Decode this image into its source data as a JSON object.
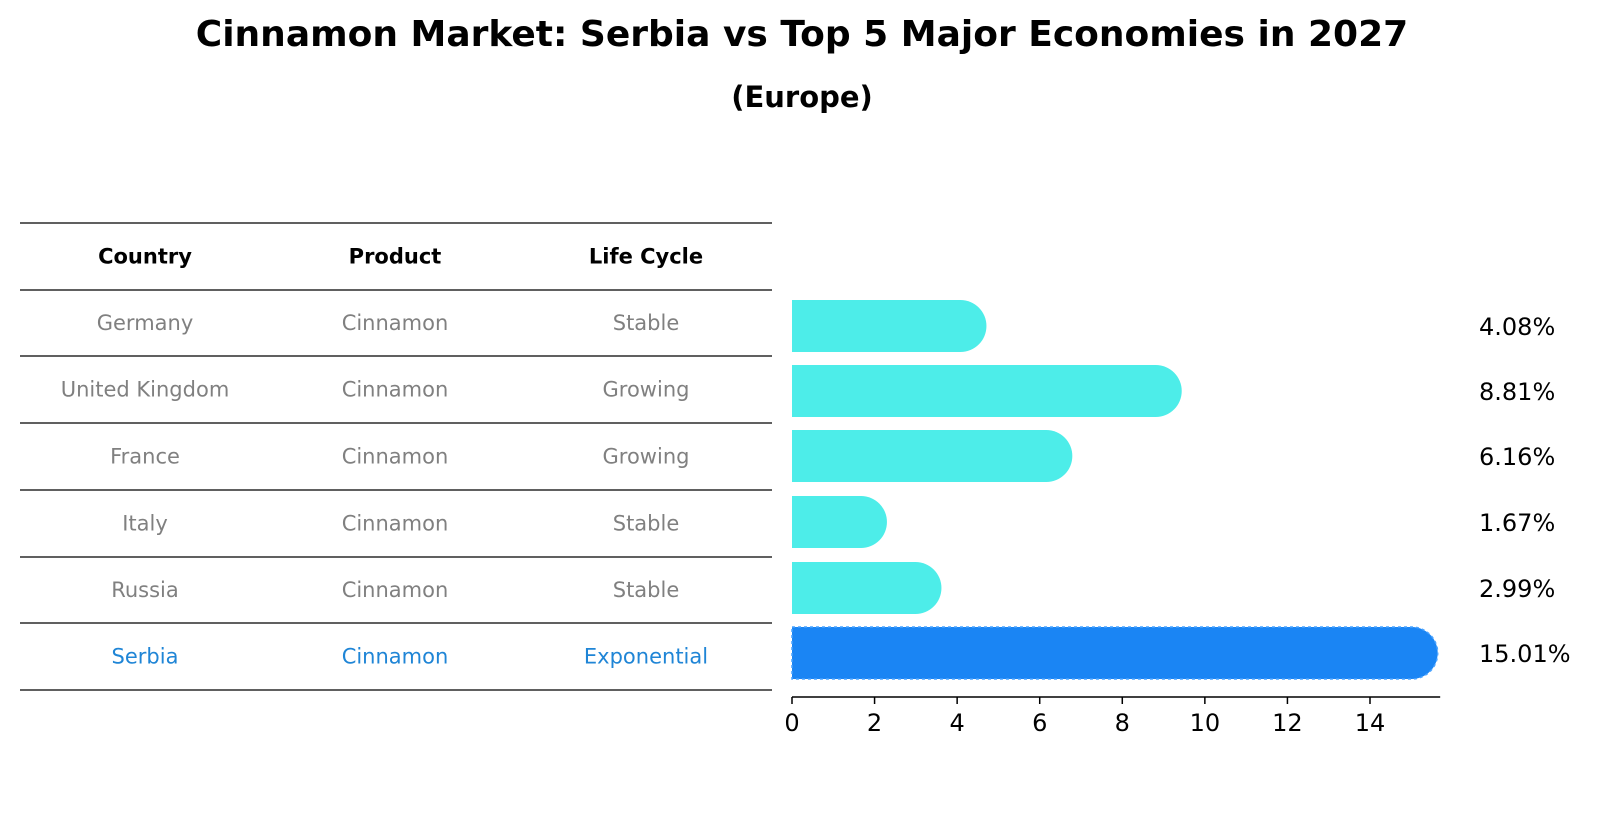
{
  "title": "Cinnamon Market: Serbia vs Top 5 Major Economies in 2027",
  "subtitle": "(Europe)",
  "table": {
    "headers": [
      "Country",
      "Product",
      "Life Cycle"
    ],
    "rows": [
      [
        "Germany",
        "Cinnamon",
        "Stable"
      ],
      [
        "United Kingdom",
        "Cinnamon",
        "Growing"
      ],
      [
        "France",
        "Cinnamon",
        "Growing"
      ],
      [
        "Italy",
        "Cinnamon",
        "Stable"
      ],
      [
        "Russia",
        "Cinnamon",
        "Stable"
      ],
      [
        "Serbia",
        "Cinnamon",
        "Exponential"
      ]
    ],
    "highlight_row": 5,
    "text_color": "#808080",
    "highlight_color": "#1f85d6"
  },
  "chart_data": {
    "type": "bar",
    "orientation": "horizontal",
    "categories": [
      "Germany",
      "United Kingdom",
      "France",
      "Italy",
      "Russia",
      "Serbia"
    ],
    "values": [
      4.08,
      8.81,
      6.16,
      1.67,
      2.99,
      15.01
    ],
    "value_labels": [
      "4.08%",
      "8.81%",
      "6.16%",
      "1.67%",
      "2.99%",
      "15.01%"
    ],
    "highlight_index": 5,
    "xlim": [
      0,
      15.7
    ],
    "xticks": [
      0,
      2,
      4,
      6,
      8,
      10,
      12,
      14
    ],
    "bar_color": "#4dede9",
    "highlight_color": "#1a85f4",
    "grid": false
  }
}
